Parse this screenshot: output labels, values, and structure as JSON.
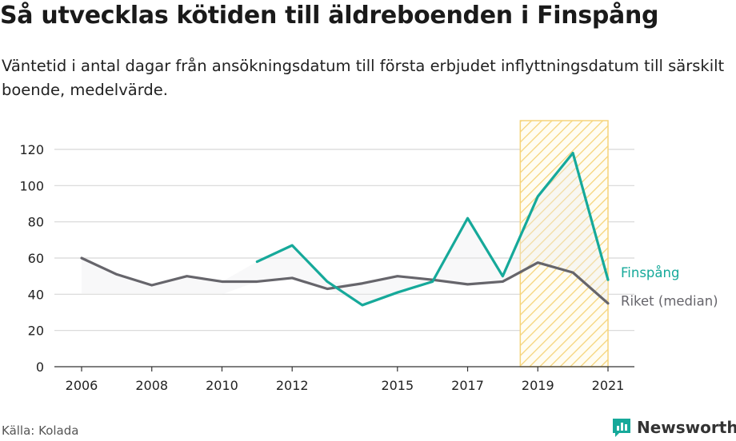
{
  "title": "Så utvecklas kötiden till äldreboenden i Finspång",
  "subtitle": "Väntetid i antal dagar från ansökningsdatum till första erbjudet inflyttningsdatum till särskilt boende, medelvärde.",
  "source": "Källa: Kolada",
  "brand": {
    "name": "Newsworthy",
    "icon": "newsworthy-logo-icon"
  },
  "colors": {
    "finspang": "#16a99a",
    "riket": "#66656b",
    "highlight": "#f6d47a",
    "axis": "#333333",
    "grid": "#d7d7d7"
  },
  "chart_data": {
    "type": "line",
    "x": [
      2006,
      2007,
      2008,
      2009,
      2010,
      2011,
      2012,
      2013,
      2014,
      2015,
      2016,
      2017,
      2018,
      2019,
      2020,
      2021
    ],
    "x_tick_labels": [
      "2006",
      "2008",
      "2010",
      "2012",
      "2015",
      "2017",
      "2019",
      "2021"
    ],
    "x_ticks": [
      2006,
      2008,
      2010,
      2012,
      2015,
      2017,
      2019,
      2021
    ],
    "ylim": [
      0,
      130
    ],
    "y_ticks": [
      0,
      20,
      40,
      60,
      80,
      100,
      120
    ],
    "grid": true,
    "highlight_range": [
      2018.5,
      2021
    ],
    "series": [
      {
        "name": "Finspång",
        "values": [
          null,
          null,
          null,
          null,
          null,
          58,
          67,
          47,
          34,
          41,
          47,
          82,
          50,
          94,
          118,
          48
        ]
      },
      {
        "name": "Riket (median)",
        "values": [
          60,
          51,
          45,
          50,
          47,
          47,
          49,
          43,
          46,
          50,
          48,
          45.5,
          47,
          57.5,
          52,
          35
        ]
      }
    ]
  }
}
